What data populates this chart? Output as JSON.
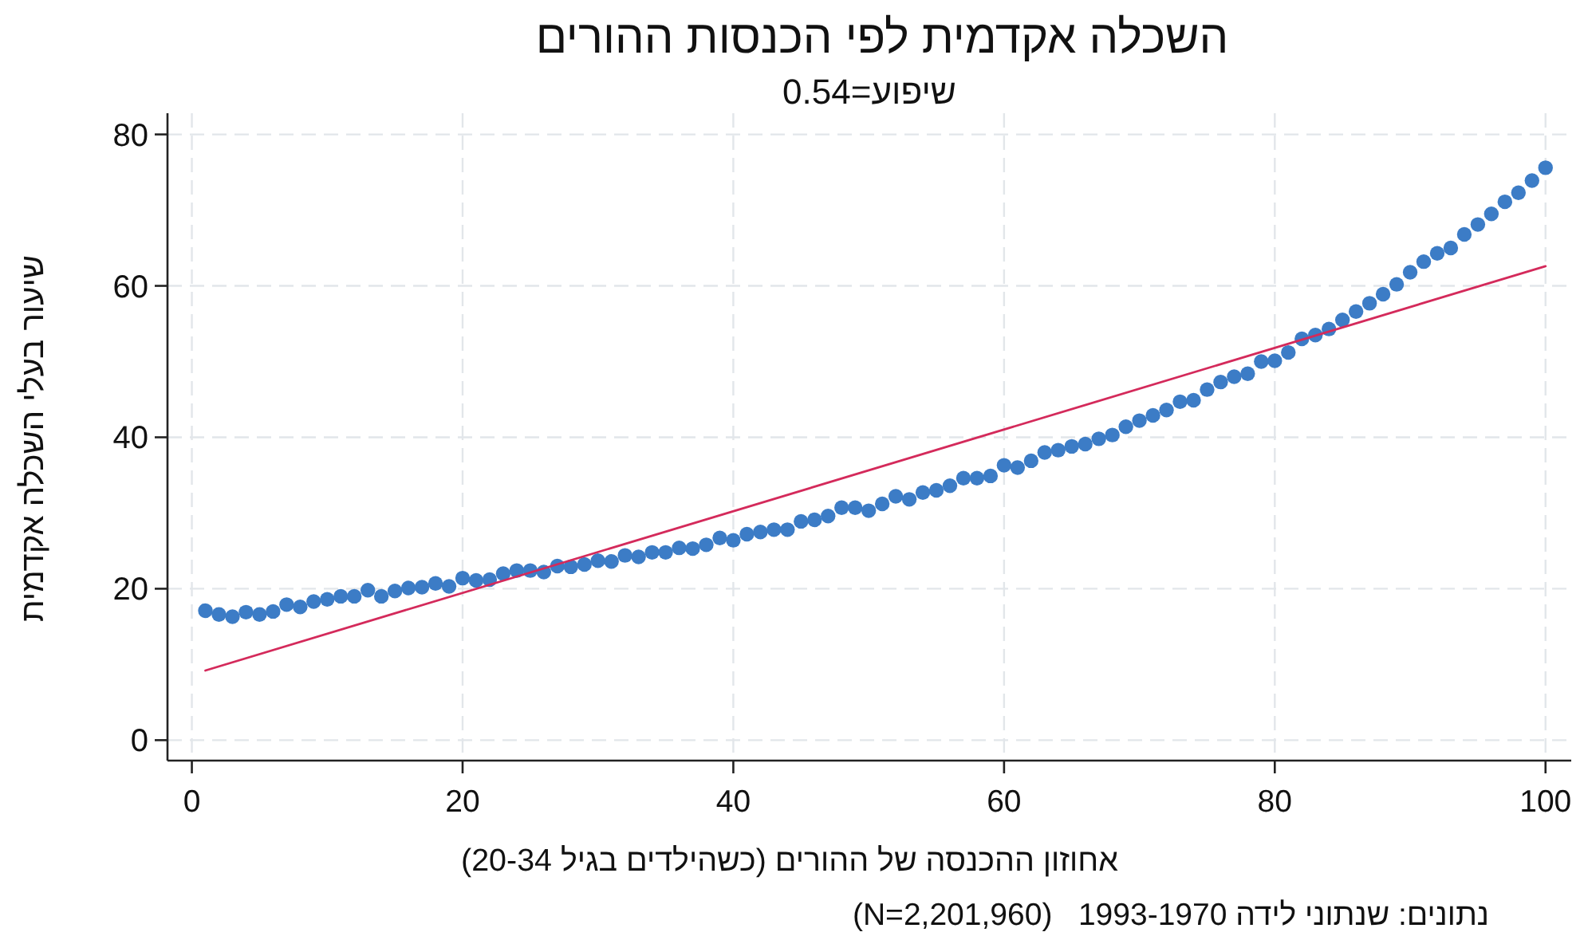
{
  "chart_data": {
    "type": "scatter",
    "title": "השכלה אקדמית לפי הכנסות ההורים",
    "subtitle": "שיפוע=0.54",
    "xlabel": "אחוזון ההכנסה של ההורים (כשהילדים בגיל 20-34)",
    "ylabel": "שיעור בעלי השכלה אקדמית",
    "annotations": [
      "נתונים: שנתוני לידה 1993-1970   (N=2,201,960)"
    ],
    "xlim": [
      -1.8,
      101.9
    ],
    "ylim": [
      -2.7,
      82.8
    ],
    "xticks": [
      0,
      20,
      40,
      60,
      80,
      100
    ],
    "yticks": [
      0,
      20,
      40,
      60,
      80
    ],
    "grid": true,
    "marker": "circle",
    "series": [
      {
        "color": "#3c7cc6",
        "x": [
          1,
          2,
          3,
          4,
          5,
          6,
          7,
          8,
          9,
          10,
          11,
          12,
          13,
          14,
          15,
          16,
          17,
          18,
          19,
          20,
          21,
          22,
          23,
          24,
          25,
          26,
          27,
          28,
          29,
          30,
          31,
          32,
          33,
          34,
          35,
          36,
          37,
          38,
          39,
          40,
          41,
          42,
          43,
          44,
          45,
          46,
          47,
          48,
          49,
          50,
          51,
          52,
          53,
          54,
          55,
          56,
          57,
          58,
          59,
          60,
          61,
          62,
          63,
          64,
          65,
          66,
          67,
          68,
          69,
          70,
          71,
          72,
          73,
          74,
          75,
          76,
          77,
          78,
          79,
          80,
          81,
          82,
          83,
          84,
          85,
          86,
          87,
          88,
          89,
          90,
          91,
          92,
          93,
          94,
          95,
          96,
          97,
          98,
          99,
          100
        ],
        "values": [
          17.1,
          16.6,
          16.3,
          16.9,
          16.6,
          17.0,
          17.9,
          17.6,
          18.3,
          18.6,
          19.0,
          19.0,
          19.8,
          19.0,
          19.7,
          20.1,
          20.2,
          20.7,
          20.3,
          21.4,
          21.1,
          21.2,
          22.0,
          22.4,
          22.4,
          22.2,
          23.0,
          22.9,
          23.2,
          23.7,
          23.6,
          24.4,
          24.2,
          24.8,
          24.8,
          25.4,
          25.3,
          25.8,
          26.7,
          26.4,
          27.2,
          27.5,
          27.8,
          27.8,
          28.9,
          29.1,
          29.6,
          30.7,
          30.7,
          30.3,
          31.2,
          32.2,
          31.8,
          32.7,
          33.0,
          33.6,
          34.6,
          34.6,
          34.9,
          36.3,
          36.0,
          36.9,
          38.0,
          38.3,
          38.8,
          39.1,
          39.8,
          40.3,
          41.4,
          42.2,
          42.9,
          43.6,
          44.7,
          44.9,
          46.3,
          47.3,
          48.0,
          48.4,
          50.0,
          50.1,
          51.2,
          53.0,
          53.5,
          54.3,
          55.5,
          56.6,
          57.7,
          58.9,
          60.2,
          61.8,
          63.2,
          64.3,
          65.0,
          66.8,
          68.1,
          69.5,
          71.1,
          72.3,
          73.9,
          75.6
        ]
      },
      {
        "type": "line",
        "color": "#d42a5b",
        "line_style": "solid",
        "marker": "none",
        "x": [
          1,
          100
        ],
        "values": [
          9.2,
          62.6
        ]
      }
    ]
  }
}
